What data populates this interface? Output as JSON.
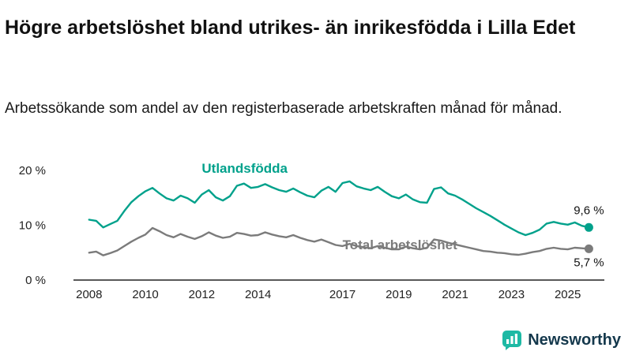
{
  "header": {
    "title": "Högre arbetslöshet bland utrikes- än inrikesfödda i Lilla Edet",
    "subtitle": "Arbetssökande som andel av den registerbaserade arbetskraften månad för månad."
  },
  "footer": {
    "brand": "Newsworthy"
  },
  "colors": {
    "teal_series": "#00a18b",
    "gray_series": "#7b7b7b",
    "brand_icon": "#1db9a4",
    "brand_text": "#14384c",
    "axis": "#222222",
    "title_text": "#111111"
  },
  "chart_data": {
    "type": "line",
    "title": "Högre arbetslöshet bland utrikes- än inrikesfödda i Lilla Edet",
    "subtitle": "Arbetssökande som andel av den registerbaserade arbetskraften månad för månad.",
    "xlabel": "",
    "ylabel": "",
    "ylim": [
      0,
      20
    ],
    "xlim": [
      2007.5,
      2026.3
    ],
    "grid": false,
    "legend": "inline-labels",
    "x_start": 2008.0,
    "x_step": 0.25,
    "y_ticks": [
      {
        "value": 0,
        "label": "0 %"
      },
      {
        "value": 10,
        "label": "10 %"
      },
      {
        "value": 20,
        "label": "20 %"
      }
    ],
    "x_ticks": [
      {
        "value": 2008,
        "label": "2008"
      },
      {
        "value": 2010,
        "label": "2010"
      },
      {
        "value": 2012,
        "label": "2012"
      },
      {
        "value": 2014,
        "label": "2014"
      },
      {
        "value": 2017,
        "label": "2017"
      },
      {
        "value": 2019,
        "label": "2019"
      },
      {
        "value": 2021,
        "label": "2021"
      },
      {
        "value": 2023,
        "label": "2023"
      },
      {
        "value": 2025,
        "label": "2025"
      }
    ],
    "series": [
      {
        "name": "Utlandsfödda",
        "color": "#00a18b",
        "end_label": "9,6 %",
        "end_value": 9.6,
        "end_label_dy": -17,
        "label_pos": {
          "x": 2012.0,
          "y": 19.6
        },
        "values": [
          11.0,
          10.8,
          9.6,
          10.2,
          10.8,
          12.6,
          14.2,
          15.3,
          16.2,
          16.8,
          15.8,
          14.9,
          14.5,
          15.4,
          14.9,
          14.1,
          15.6,
          16.4,
          15.1,
          14.5,
          15.3,
          17.2,
          17.6,
          16.8,
          17.0,
          17.5,
          16.9,
          16.4,
          16.1,
          16.7,
          16.0,
          15.4,
          15.1,
          16.3,
          17.0,
          16.1,
          17.7,
          18.0,
          17.1,
          16.7,
          16.4,
          17.0,
          16.1,
          15.3,
          14.9,
          15.6,
          14.7,
          14.2,
          14.1,
          16.6,
          16.9,
          15.8,
          15.4,
          14.7,
          13.9,
          13.1,
          12.4,
          11.7,
          10.9,
          10.1,
          9.4,
          8.7,
          8.2,
          8.6,
          9.2,
          10.3,
          10.6,
          10.3,
          10.1,
          10.5,
          9.9,
          9.6
        ]
      },
      {
        "name": "Total arbetslöshet",
        "color": "#7b7b7b",
        "end_label": "5,7 %",
        "end_value": 5.7,
        "end_label_dy": 22,
        "label_pos": {
          "x": 2017.0,
          "y": 5.6
        },
        "values": [
          5.0,
          5.2,
          4.5,
          4.9,
          5.4,
          6.2,
          7.0,
          7.7,
          8.3,
          9.5,
          8.9,
          8.2,
          7.8,
          8.4,
          7.9,
          7.5,
          8.0,
          8.7,
          8.1,
          7.7,
          7.9,
          8.6,
          8.4,
          8.1,
          8.2,
          8.7,
          8.3,
          8.0,
          7.8,
          8.2,
          7.7,
          7.3,
          7.0,
          7.4,
          6.9,
          6.4,
          6.2,
          6.6,
          6.2,
          6.0,
          5.8,
          6.2,
          5.9,
          5.6,
          5.6,
          6.1,
          5.8,
          5.6,
          5.9,
          7.4,
          7.2,
          6.8,
          6.5,
          6.2,
          5.9,
          5.6,
          5.3,
          5.2,
          5.0,
          4.9,
          4.7,
          4.6,
          4.8,
          5.1,
          5.3,
          5.7,
          5.9,
          5.7,
          5.6,
          5.9,
          5.8,
          5.7
        ]
      }
    ]
  }
}
